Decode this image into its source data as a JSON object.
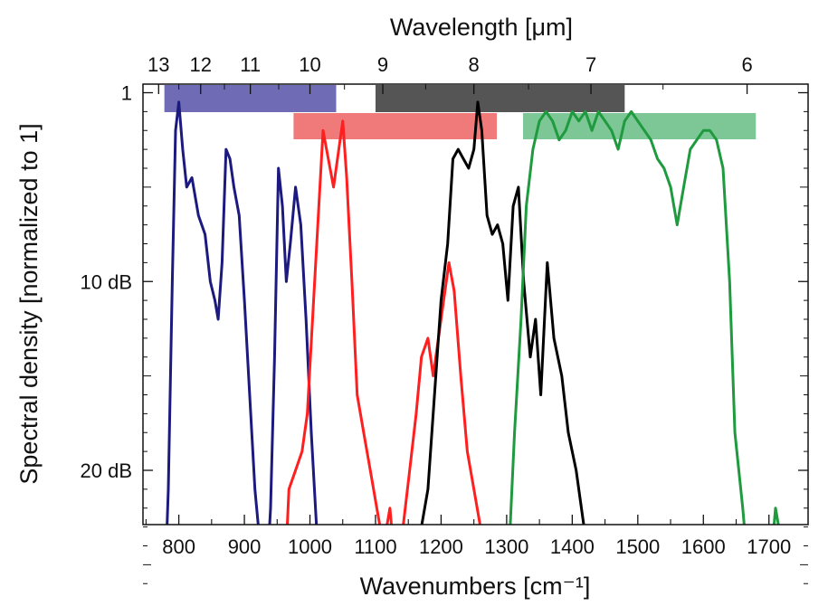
{
  "chart_data": {
    "type": "line",
    "xlabel": "Wavenumbers [cm⁻¹]",
    "x2label": "Wavelength [μm]",
    "ylabel": "Spectral density [normalized to 1]",
    "xlim": [
      750,
      1730
    ],
    "ylim_db": [
      -27,
      0
    ],
    "y_scale": "dB",
    "grid": false,
    "legend": "none",
    "x_ticks": [
      800,
      900,
      1000,
      1100,
      1200,
      1300,
      1400,
      1500,
      1600,
      1700
    ],
    "x_tick_labels": [
      "800",
      "900",
      "1000",
      "1100",
      "1200",
      "1300",
      "1400",
      "1500",
      "1600",
      "1700"
    ],
    "y_ticks_db": [
      0,
      -10,
      -20
    ],
    "y_tick_labels": [
      "1",
      "10 dB",
      "20 dB"
    ],
    "wavelength_ticks_um": [
      13,
      12,
      11,
      10,
      9,
      8,
      7,
      6
    ],
    "wavelength_tick_labels": [
      "13",
      "12",
      "11",
      "10",
      "9",
      "8",
      "7",
      "6"
    ],
    "series": [
      {
        "color": "#1c1a7e",
        "points": [
          [
            778,
            -27
          ],
          [
            784,
            -21
          ],
          [
            790,
            -10
          ],
          [
            795,
            -2
          ],
          [
            800,
            -0.5
          ],
          [
            806,
            -3
          ],
          [
            812,
            -5
          ],
          [
            820,
            -4.5
          ],
          [
            830,
            -6.5
          ],
          [
            840,
            -7.5
          ],
          [
            848,
            -10
          ],
          [
            855,
            -11
          ],
          [
            860,
            -12
          ],
          [
            866,
            -9
          ],
          [
            872,
            -3
          ],
          [
            878,
            -3.5
          ],
          [
            884,
            -5
          ],
          [
            892,
            -6.5
          ],
          [
            900,
            -11
          ],
          [
            908,
            -16
          ],
          [
            916,
            -21
          ],
          [
            924,
            -24
          ],
          [
            932,
            -27
          ],
          [
            940,
            -22
          ],
          [
            946,
            -14
          ],
          [
            952,
            -4
          ],
          [
            958,
            -6
          ],
          [
            964,
            -10
          ],
          [
            970,
            -8
          ],
          [
            978,
            -5
          ],
          [
            986,
            -7
          ],
          [
            994,
            -12
          ],
          [
            1002,
            -18
          ],
          [
            1010,
            -23
          ],
          [
            1018,
            -27
          ]
        ]
      },
      {
        "color": "#ff1f1f",
        "points": [
          [
            960,
            -27
          ],
          [
            968,
            -21
          ],
          [
            978,
            -20
          ],
          [
            988,
            -19
          ],
          [
            996,
            -17
          ],
          [
            1004,
            -12
          ],
          [
            1012,
            -7
          ],
          [
            1020,
            -2
          ],
          [
            1028,
            -3.5
          ],
          [
            1036,
            -5
          ],
          [
            1044,
            -3
          ],
          [
            1050,
            -1.5
          ],
          [
            1056,
            -4.5
          ],
          [
            1064,
            -10
          ],
          [
            1072,
            -16
          ],
          [
            1082,
            -18
          ],
          [
            1092,
            -20
          ],
          [
            1102,
            -22
          ],
          [
            1112,
            -24
          ],
          [
            1122,
            -22
          ],
          [
            1132,
            -26
          ],
          [
            1142,
            -23
          ],
          [
            1152,
            -20
          ],
          [
            1162,
            -17
          ],
          [
            1170,
            -14
          ],
          [
            1180,
            -13
          ],
          [
            1188,
            -15
          ],
          [
            1196,
            -13
          ],
          [
            1204,
            -11
          ],
          [
            1212,
            -9
          ],
          [
            1220,
            -10.5
          ],
          [
            1230,
            -15
          ],
          [
            1240,
            -19
          ],
          [
            1250,
            -21
          ],
          [
            1260,
            -23
          ],
          [
            1270,
            -27
          ]
        ]
      },
      {
        "color": "#000000",
        "points": [
          [
            1150,
            -27
          ],
          [
            1165,
            -24
          ],
          [
            1180,
            -21
          ],
          [
            1192,
            -15
          ],
          [
            1200,
            -11
          ],
          [
            1210,
            -8
          ],
          [
            1218,
            -3.5
          ],
          [
            1226,
            -3
          ],
          [
            1234,
            -3.5
          ],
          [
            1242,
            -4
          ],
          [
            1250,
            -3
          ],
          [
            1256,
            -0.5
          ],
          [
            1262,
            -2
          ],
          [
            1270,
            -6.5
          ],
          [
            1278,
            -7.5
          ],
          [
            1286,
            -7
          ],
          [
            1294,
            -8
          ],
          [
            1302,
            -11
          ],
          [
            1310,
            -6
          ],
          [
            1318,
            -5
          ],
          [
            1326,
            -10
          ],
          [
            1336,
            -14
          ],
          [
            1344,
            -12
          ],
          [
            1352,
            -16
          ],
          [
            1362,
            -9
          ],
          [
            1372,
            -13
          ],
          [
            1384,
            -15
          ],
          [
            1394,
            -18
          ],
          [
            1406,
            -20
          ],
          [
            1418,
            -23
          ],
          [
            1430,
            -27
          ]
        ]
      },
      {
        "color": "#1f9a3e",
        "points": [
          [
            1300,
            -27
          ],
          [
            1312,
            -18
          ],
          [
            1322,
            -12
          ],
          [
            1330,
            -6
          ],
          [
            1340,
            -3
          ],
          [
            1350,
            -1.5
          ],
          [
            1360,
            -1
          ],
          [
            1370,
            -1.5
          ],
          [
            1380,
            -2.5
          ],
          [
            1390,
            -2
          ],
          [
            1400,
            -1
          ],
          [
            1410,
            -1.5
          ],
          [
            1420,
            -1
          ],
          [
            1430,
            -2
          ],
          [
            1440,
            -1
          ],
          [
            1450,
            -1.5
          ],
          [
            1460,
            -2
          ],
          [
            1470,
            -3
          ],
          [
            1480,
            -1.5
          ],
          [
            1490,
            -1
          ],
          [
            1500,
            -1.5
          ],
          [
            1510,
            -2
          ],
          [
            1520,
            -2.5
          ],
          [
            1530,
            -3.5
          ],
          [
            1540,
            -4
          ],
          [
            1550,
            -5
          ],
          [
            1560,
            -7
          ],
          [
            1570,
            -5
          ],
          [
            1580,
            -3
          ],
          [
            1590,
            -2.5
          ],
          [
            1600,
            -2
          ],
          [
            1610,
            -2
          ],
          [
            1620,
            -2.5
          ],
          [
            1630,
            -4
          ],
          [
            1640,
            -10
          ],
          [
            1648,
            -18
          ],
          [
            1660,
            -22
          ],
          [
            1670,
            -26
          ],
          [
            1680,
            -27
          ],
          [
            1690,
            -25
          ],
          [
            1700,
            -26
          ],
          [
            1710,
            -22
          ],
          [
            1720,
            -24
          ]
        ]
      }
    ],
    "bands": [
      {
        "row": 1,
        "x_from": 778,
        "x_to": 1040,
        "color": "#6f6cb5"
      },
      {
        "row": 1,
        "x_from": 1100,
        "x_to": 1480,
        "color": "#555555"
      },
      {
        "row": 2,
        "x_from": 975,
        "x_to": 1285,
        "color": "#f07a7a"
      },
      {
        "row": 2,
        "x_from": 1325,
        "x_to": 1680,
        "color": "#7cc795"
      }
    ]
  }
}
